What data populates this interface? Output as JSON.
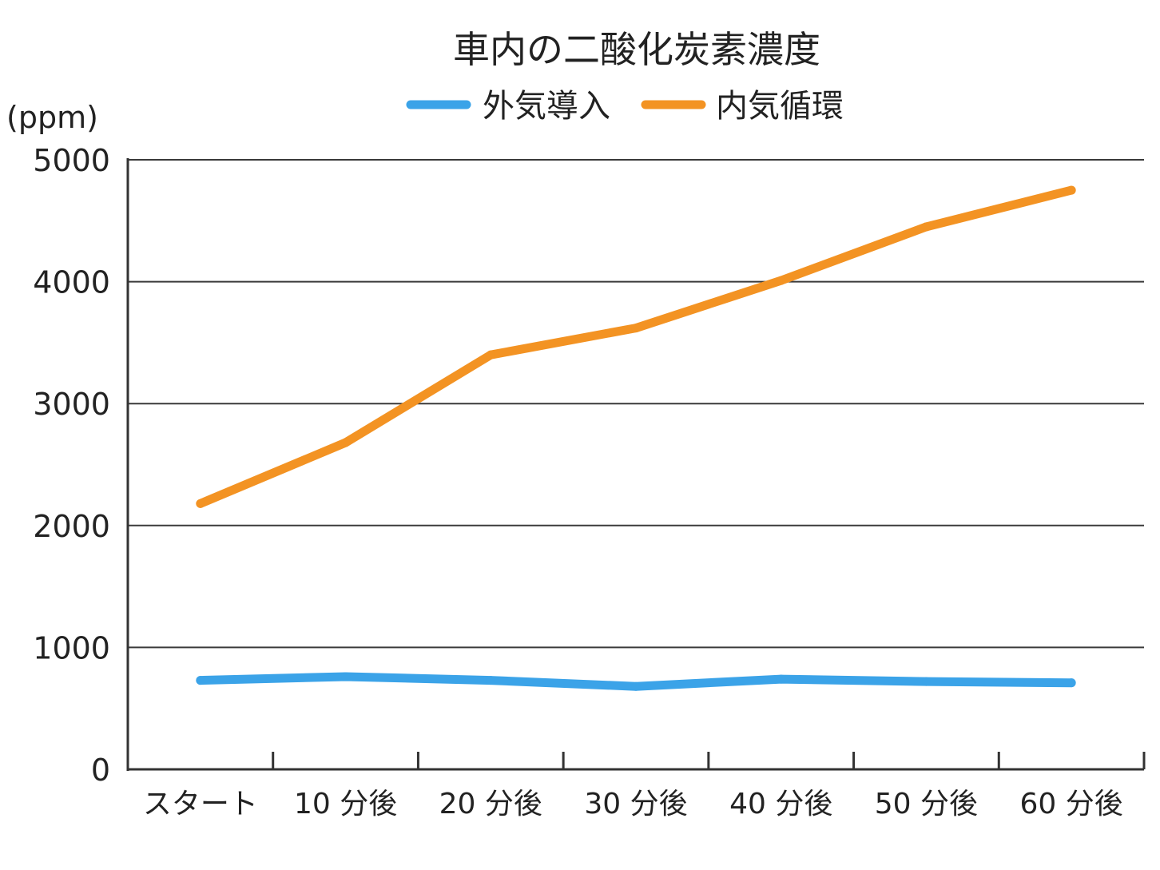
{
  "chart_data": {
    "type": "line",
    "title": "車内の二酸化炭素濃度",
    "ylabel": "(ppm)",
    "xlabel": "",
    "categories": [
      "スタート",
      "10 分後",
      "20 分後",
      "30 分後",
      "40 分後",
      "50 分後",
      "60 分後"
    ],
    "ylim": [
      0,
      5000
    ],
    "yticks": [
      0,
      1000,
      2000,
      3000,
      4000,
      5000
    ],
    "grid": true,
    "legend_position": "top-center",
    "series": [
      {
        "name": "外気導入",
        "color": "#3ba3e8",
        "x": [
          0,
          1,
          2,
          3,
          4,
          5,
          6
        ],
        "values": [
          730,
          760,
          730,
          680,
          740,
          720,
          710
        ]
      },
      {
        "name": "内気循環",
        "color": "#f39323",
        "x": [
          0,
          1,
          2,
          3,
          4,
          5,
          6
        ],
        "values": [
          2180,
          2680,
          3400,
          3620,
          4010,
          4450,
          4750
        ]
      }
    ]
  }
}
